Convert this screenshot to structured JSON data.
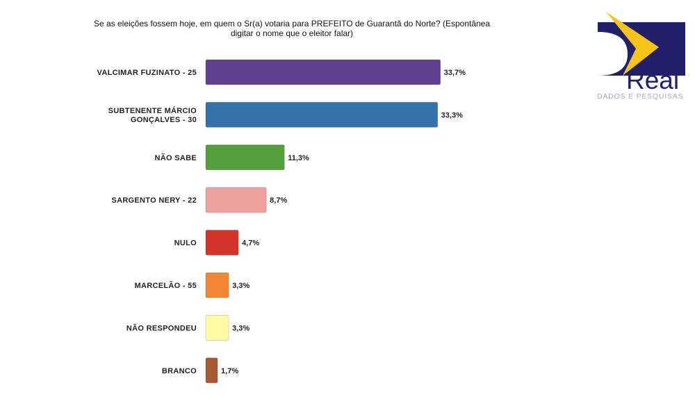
{
  "chart_data": {
    "type": "bar",
    "orientation": "horizontal",
    "title": "Se as eleições fossem hoje, em quem o Sr(a) votaria para PREFEITO de Guarantã do Norte? (Espontânea digitar o nome que o eleitor falar)",
    "categories": [
      [
        "VALCIMAR FUZINATO - 25"
      ],
      [
        "SUBTENENTE MÁRCIO",
        "GONÇALVES - 30"
      ],
      [
        "NÃO SABE"
      ],
      [
        "SARGENTO NERY - 22"
      ],
      [
        "NULO"
      ],
      [
        "MARCELÃO - 55"
      ],
      [
        "NÃO RESPONDEU"
      ],
      [
        "BRANCO"
      ]
    ],
    "values": [
      33.7,
      33.3,
      11.3,
      8.7,
      4.7,
      3.3,
      3.3,
      1.7
    ],
    "value_labels": [
      "33,7%",
      "33,3%",
      "11,3%",
      "8,7%",
      "4,7%",
      "3,3%",
      "3,3%",
      "1,7%"
    ],
    "colors": [
      "#5f3f90",
      "#3572ab",
      "#55a03d",
      "#eda09d",
      "#d2342c",
      "#f28632",
      "#fdfba6",
      "#a75a33"
    ],
    "grid": false,
    "legend": "none"
  },
  "logo": {
    "word": "Real",
    "subtitle": "DADOS E PESQUISAS",
    "colors": {
      "navy": "#23206b",
      "yellow": "#f6c419"
    }
  }
}
